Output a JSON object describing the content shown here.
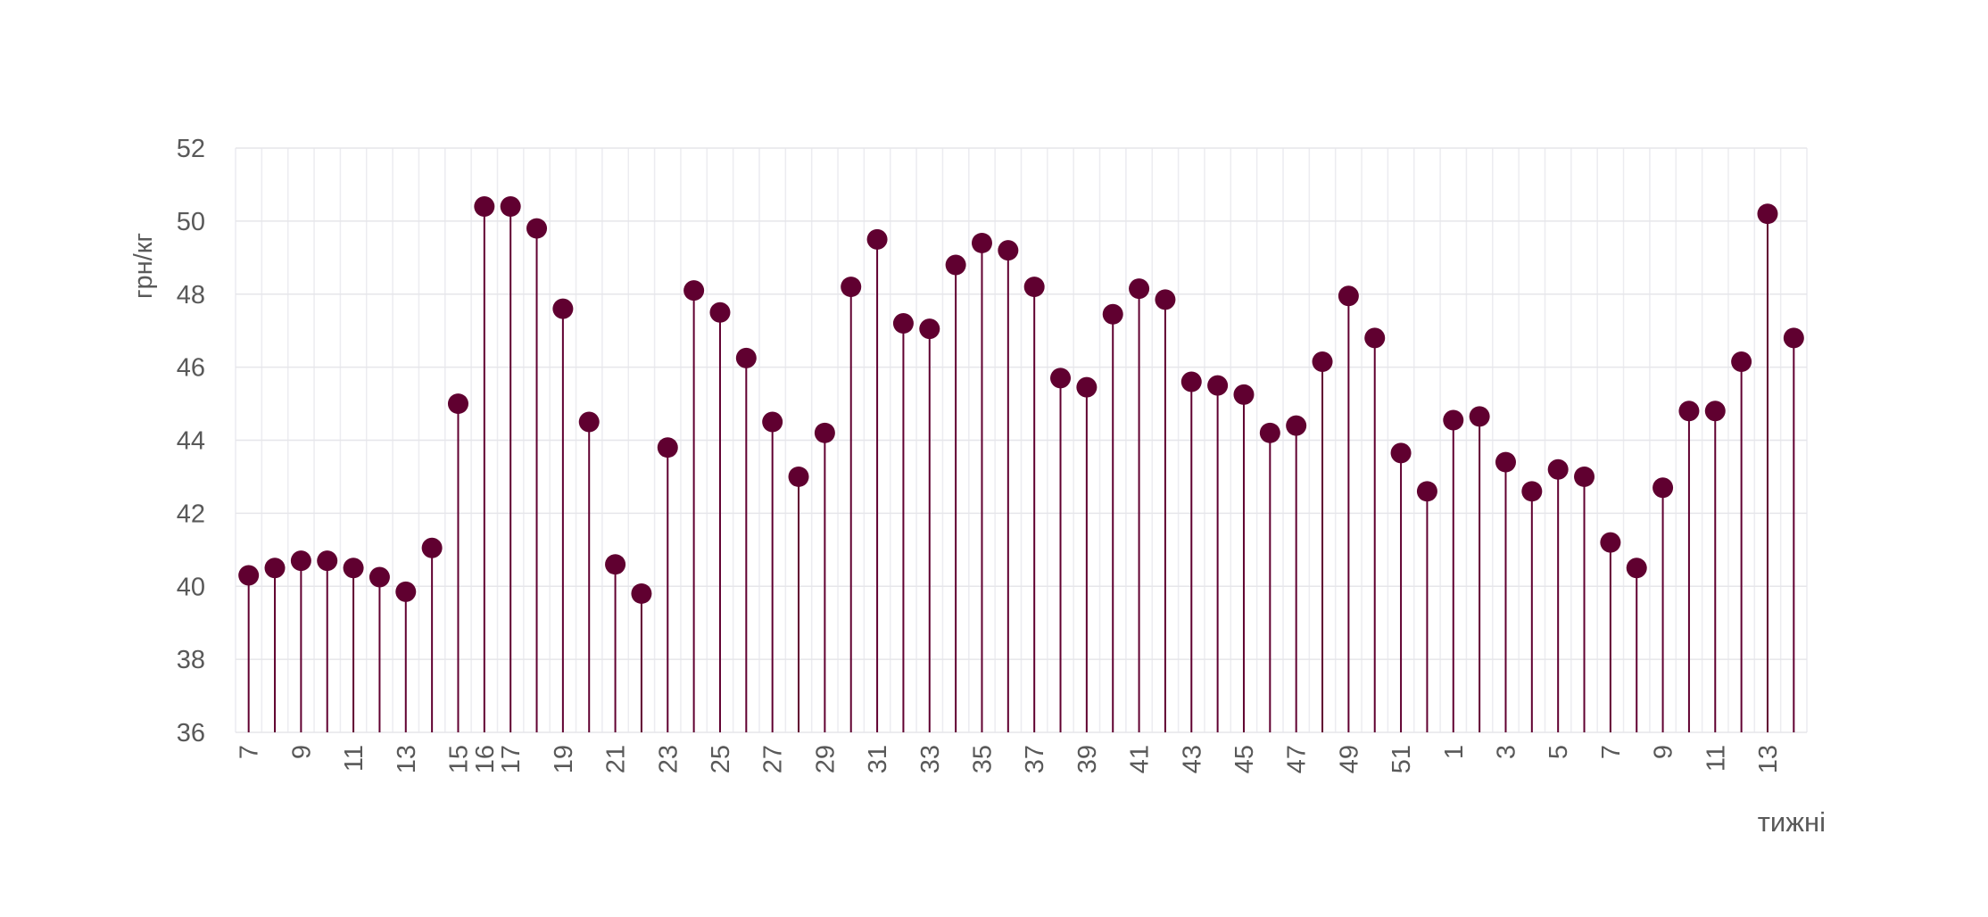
{
  "chart_data": {
    "type": "lollipop",
    "y_label": "грн/кг",
    "x_label": "тижні",
    "categories": [
      "7",
      null,
      "9",
      null,
      "11",
      null,
      "13",
      null,
      "15",
      "16",
      "17",
      null,
      "19",
      null,
      "21",
      null,
      "23",
      null,
      "25",
      null,
      "27",
      null,
      "29",
      null,
      "31",
      null,
      "33",
      null,
      "35",
      null,
      "37",
      null,
      "39",
      null,
      "41",
      null,
      "43",
      null,
      "45",
      null,
      "47",
      null,
      "49",
      null,
      "51",
      null,
      "1",
      null,
      "3",
      null,
      "5",
      null,
      "7",
      null,
      "9",
      null,
      "11",
      null,
      "13",
      null
    ],
    "values": [
      40.3,
      40.5,
      40.7,
      40.7,
      40.5,
      40.25,
      39.85,
      41.05,
      45.0,
      50.4,
      50.4,
      49.8,
      47.6,
      44.5,
      40.6,
      39.8,
      43.8,
      48.1,
      47.5,
      46.25,
      44.5,
      43.0,
      44.2,
      48.2,
      49.5,
      47.2,
      47.05,
      48.8,
      49.4,
      49.2,
      48.2,
      45.7,
      45.45,
      47.45,
      48.15,
      47.85,
      45.6,
      45.5,
      45.25,
      44.2,
      44.4,
      46.15,
      47.95,
      46.8,
      43.65,
      42.6,
      44.55,
      44.65,
      43.4,
      42.6,
      43.2,
      43.0,
      41.2,
      40.5,
      42.7,
      44.8,
      44.8,
      46.15,
      50.2,
      46.8
    ],
    "color": "#600030",
    "ylim": [
      36,
      52
    ],
    "yticks": [
      36,
      38,
      40,
      42,
      44,
      46,
      48,
      50,
      52
    ],
    "grid": true
  }
}
